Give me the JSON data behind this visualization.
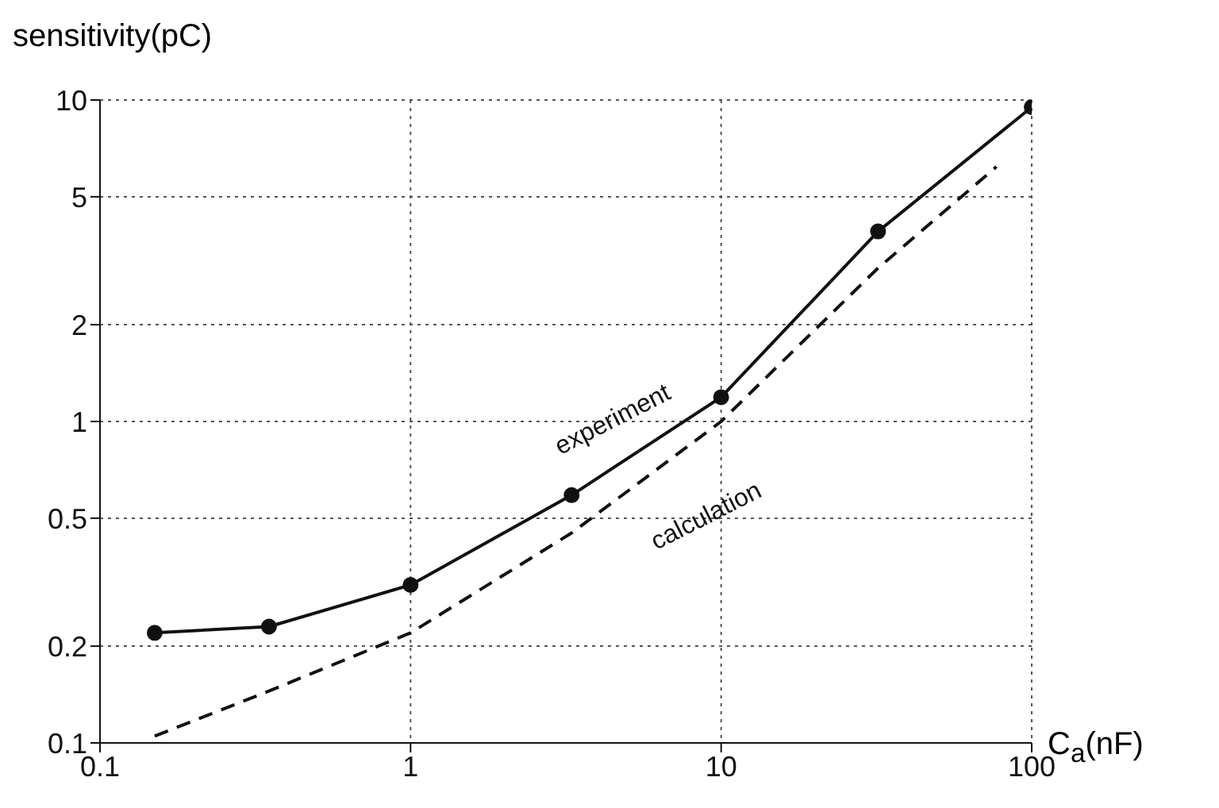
{
  "chart_data": {
    "type": "line",
    "ylabel": "sensitivity(pC)",
    "xlabel": "C$_{a}$(nF)",
    "series": [
      {
        "color": "#111111",
        "marker": "circle",
        "line_style": "solid",
        "x": [
          0.15,
          0.35,
          1,
          3.3,
          10,
          32,
          100
        ],
        "values": [
          0.22,
          0.23,
          0.31,
          0.59,
          1.19,
          3.9,
          9.5
        ]
      },
      {
        "color": "#111111",
        "marker": "none",
        "line_style": "dashed",
        "x": [
          0.15,
          0.35,
          1,
          3.3,
          10,
          32,
          77
        ],
        "values": [
          0.105,
          0.145,
          0.22,
          0.45,
          1.0,
          3.0,
          6.2
        ]
      }
    ],
    "annotations": [
      "experiment",
      "calculation"
    ],
    "log": "xy",
    "xlim": [
      0.1,
      100
    ],
    "xticks": [
      0.1,
      1,
      10,
      100
    ],
    "ylim": [
      0.1,
      10
    ],
    "yticks": [
      0.1,
      0.2,
      0.5,
      1,
      2,
      5,
      10
    ],
    "grid": true
  }
}
